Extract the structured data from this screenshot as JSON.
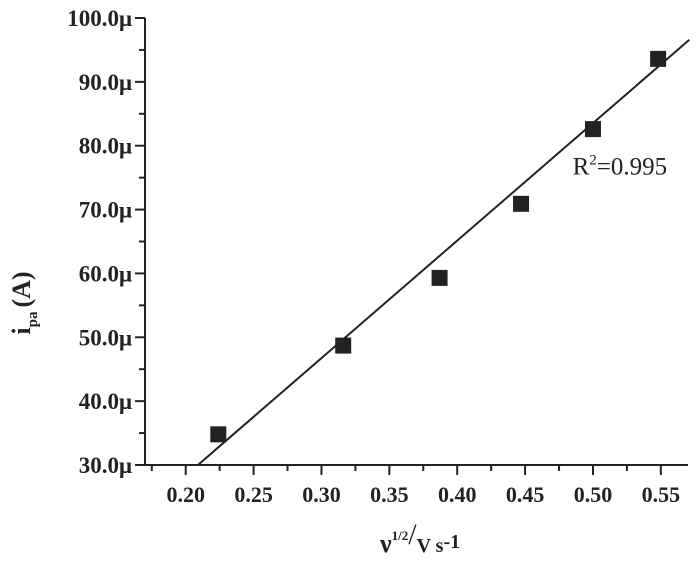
{
  "chart_data": {
    "type": "scatter",
    "title": "",
    "xlabel": {
      "base": "ν",
      "sup": "1/2",
      "slash": "/",
      "unit": "V s",
      "unit_sup": "-1"
    },
    "ylabel": {
      "base": "i",
      "sub": "pa",
      "unit": "(A)"
    },
    "xlim": [
      0.17,
      0.57
    ],
    "ylim": [
      30.0,
      100.0
    ],
    "y_unit_suffix": "μ",
    "x_ticks": [
      0.2,
      0.25,
      0.3,
      0.35,
      0.4,
      0.45,
      0.5,
      0.55
    ],
    "x_tick_labels": [
      "0.20",
      "0.25",
      "0.30",
      "0.35",
      "0.40",
      "0.45",
      "0.50",
      "0.55"
    ],
    "y_ticks": [
      30,
      40,
      50,
      60,
      70,
      80,
      90,
      100
    ],
    "y_tick_labels": [
      "30.0μ",
      "40.0μ",
      "50.0μ",
      "60.0μ",
      "70.0μ",
      "80.0μ",
      "90.0μ",
      "100.0μ"
    ],
    "grid": false,
    "legend": "none",
    "series": [
      {
        "marker": "square",
        "color": "#222222",
        "x": [
          0.224,
          0.316,
          0.387,
          0.447,
          0.5,
          0.548
        ],
        "y": [
          34.8,
          48.7,
          59.3,
          70.9,
          82.6,
          93.6
        ]
      }
    ],
    "fit_line": {
      "x": [
        0.209,
        0.571
      ],
      "y": [
        30.0,
        96.6
      ],
      "color": "#222222"
    },
    "annotation": {
      "base": "R",
      "sup": "2",
      "rest": "=0.995",
      "x": 0.485,
      "y": 75.5
    }
  }
}
